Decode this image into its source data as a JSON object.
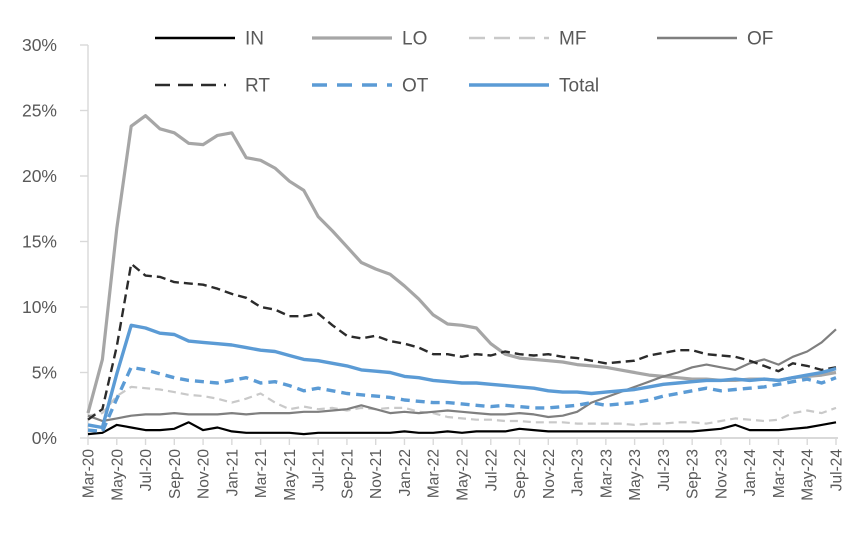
{
  "chart_data": {
    "type": "line",
    "title": "",
    "xlabel": "",
    "ylabel": "",
    "ylim": [
      0,
      30
    ],
    "grid": false,
    "legend_position": "top",
    "y_ticks": [
      {
        "value": 0,
        "label": "0%"
      },
      {
        "value": 5,
        "label": "5%"
      },
      {
        "value": 10,
        "label": "10%"
      },
      {
        "value": 15,
        "label": "15%"
      },
      {
        "value": 20,
        "label": "20%"
      },
      {
        "value": 25,
        "label": "25%"
      },
      {
        "value": 30,
        "label": "30%"
      }
    ],
    "x": [
      "Mar-20",
      "Apr-20",
      "May-20",
      "Jun-20",
      "Jul-20",
      "Aug-20",
      "Sep-20",
      "Oct-20",
      "Nov-20",
      "Dec-20",
      "Jan-21",
      "Feb-21",
      "Mar-21",
      "Apr-21",
      "May-21",
      "Jun-21",
      "Jul-21",
      "Aug-21",
      "Sep-21",
      "Oct-21",
      "Nov-21",
      "Dec-21",
      "Jan-22",
      "Feb-22",
      "Mar-22",
      "Apr-22",
      "May-22",
      "Jun-22",
      "Jul-22",
      "Aug-22",
      "Sep-22",
      "Oct-22",
      "Nov-22",
      "Dec-22",
      "Jan-23",
      "Feb-23",
      "Mar-23",
      "Apr-23",
      "May-23",
      "Jun-23",
      "Jul-23",
      "Aug-23",
      "Sep-23",
      "Oct-23",
      "Nov-23",
      "Dec-23",
      "Jan-24",
      "Feb-24",
      "Mar-24",
      "Apr-24",
      "May-24",
      "Jun-24",
      "Jul-24"
    ],
    "x_tick_labels": [
      "Mar-20",
      "May-20",
      "Jul-20",
      "Sep-20",
      "Nov-20",
      "Jan-21",
      "Mar-21",
      "May-21",
      "Jul-21",
      "Sep-21",
      "Nov-21",
      "Jan-22",
      "Mar-22",
      "May-22",
      "Jul-22",
      "Sep-22",
      "Nov-22",
      "Jan-23",
      "Mar-23",
      "May-23",
      "Jul-23",
      "Sep-23",
      "Nov-23",
      "Jan-24",
      "Mar-24",
      "May-24",
      "Jul-24"
    ],
    "x_tick_every": 2,
    "legend_rows": [
      [
        "IN",
        "LO",
        "MF",
        "OF"
      ],
      [
        "RT",
        "OT",
        "Total"
      ]
    ],
    "colors": {
      "axis": "#D9D9D9",
      "text": "#595959",
      "blue": "#5B9BD5"
    },
    "series": [
      {
        "name": "IN",
        "color": "#000000",
        "width": 2.2,
        "dash": null,
        "legend_dash": null,
        "values": [
          0.3,
          0.4,
          1.0,
          0.8,
          0.6,
          0.6,
          0.7,
          1.2,
          0.6,
          0.8,
          0.5,
          0.4,
          0.4,
          0.4,
          0.4,
          0.3,
          0.4,
          0.4,
          0.4,
          0.4,
          0.4,
          0.4,
          0.5,
          0.4,
          0.4,
          0.5,
          0.4,
          0.5,
          0.5,
          0.5,
          0.7,
          0.6,
          0.5,
          0.5,
          0.5,
          0.5,
          0.5,
          0.5,
          0.5,
          0.5,
          0.5,
          0.5,
          0.5,
          0.6,
          0.7,
          1.0,
          0.6,
          0.6,
          0.6,
          0.7,
          0.8,
          1.0,
          1.2
        ]
      },
      {
        "name": "LO",
        "color": "#A6A6A6",
        "width": 3.2,
        "dash": null,
        "legend_dash": null,
        "values": [
          1.9,
          6.0,
          16.0,
          23.8,
          24.6,
          23.6,
          23.3,
          22.5,
          22.4,
          23.1,
          23.3,
          21.4,
          21.2,
          20.6,
          19.6,
          18.9,
          16.9,
          15.8,
          14.6,
          13.4,
          12.9,
          12.5,
          11.6,
          10.6,
          9.4,
          8.7,
          8.6,
          8.4,
          7.2,
          6.4,
          6.1,
          6.0,
          5.9,
          5.8,
          5.6,
          5.5,
          5.4,
          5.2,
          5.0,
          4.8,
          4.7,
          4.6,
          4.5,
          4.5,
          4.4,
          4.4,
          4.5,
          4.5,
          4.4,
          4.6,
          4.7,
          4.8,
          5.0
        ]
      },
      {
        "name": "MF",
        "color": "#C9C9C9",
        "width": 2.2,
        "dash": "8 5",
        "legend_dash": "16 9",
        "values": [
          1.7,
          1.9,
          3.2,
          3.9,
          3.8,
          3.7,
          3.5,
          3.3,
          3.2,
          3.0,
          2.7,
          3.0,
          3.4,
          2.7,
          2.2,
          2.4,
          2.2,
          2.3,
          2.1,
          2.3,
          2.2,
          2.3,
          2.3,
          2.0,
          1.9,
          1.6,
          1.5,
          1.4,
          1.4,
          1.3,
          1.3,
          1.2,
          1.2,
          1.2,
          1.1,
          1.1,
          1.1,
          1.1,
          1.0,
          1.1,
          1.1,
          1.2,
          1.2,
          1.1,
          1.3,
          1.5,
          1.4,
          1.3,
          1.4,
          1.9,
          2.1,
          1.9,
          2.3
        ]
      },
      {
        "name": "OF",
        "color": "#7F7F7F",
        "width": 2.2,
        "dash": null,
        "legend_dash": null,
        "values": [
          1.7,
          1.3,
          1.5,
          1.7,
          1.8,
          1.8,
          1.9,
          1.8,
          1.8,
          1.8,
          1.9,
          1.8,
          1.9,
          1.9,
          1.9,
          2.0,
          2.0,
          2.1,
          2.2,
          2.5,
          2.2,
          1.9,
          2.0,
          1.9,
          2.0,
          2.1,
          2.0,
          1.9,
          1.8,
          1.8,
          1.9,
          1.8,
          1.6,
          1.7,
          2.0,
          2.7,
          3.1,
          3.5,
          3.9,
          4.3,
          4.7,
          5.0,
          5.4,
          5.6,
          5.4,
          5.2,
          5.7,
          6.0,
          5.6,
          6.2,
          6.6,
          7.3,
          8.3
        ]
      },
      {
        "name": "RT",
        "color": "#2B2B2B",
        "width": 2.4,
        "dash": "9 5",
        "legend_dash": "15 8 15 8 15 8 2 9",
        "values": [
          1.4,
          2.2,
          7.0,
          13.3,
          12.4,
          12.3,
          11.9,
          11.8,
          11.7,
          11.4,
          11.0,
          10.7,
          10.0,
          9.8,
          9.3,
          9.3,
          9.5,
          8.6,
          7.8,
          7.6,
          7.8,
          7.4,
          7.2,
          6.9,
          6.4,
          6.4,
          6.2,
          6.4,
          6.3,
          6.6,
          6.4,
          6.3,
          6.4,
          6.2,
          6.1,
          5.9,
          5.7,
          5.8,
          5.9,
          6.3,
          6.5,
          6.7,
          6.7,
          6.4,
          6.3,
          6.2,
          5.9,
          5.5,
          5.1,
          5.7,
          5.5,
          5.2,
          5.4
        ]
      },
      {
        "name": "OT",
        "color": "#5B9BD5",
        "width": 3.4,
        "dash": "9 6",
        "legend_dash": "15 10",
        "values": [
          0.6,
          0.5,
          3.0,
          5.4,
          5.2,
          4.9,
          4.6,
          4.4,
          4.3,
          4.2,
          4.4,
          4.6,
          4.2,
          4.3,
          4.0,
          3.6,
          3.8,
          3.6,
          3.4,
          3.3,
          3.2,
          3.1,
          2.9,
          2.8,
          2.7,
          2.7,
          2.6,
          2.5,
          2.4,
          2.5,
          2.4,
          2.3,
          2.3,
          2.4,
          2.5,
          2.7,
          2.5,
          2.6,
          2.7,
          2.9,
          3.2,
          3.4,
          3.6,
          3.8,
          3.6,
          3.7,
          3.8,
          3.9,
          4.1,
          4.3,
          4.5,
          4.2,
          4.6
        ]
      },
      {
        "name": "Total",
        "color": "#5B9BD5",
        "width": 3.4,
        "dash": null,
        "legend_dash": null,
        "values": [
          1.0,
          0.8,
          4.9,
          8.6,
          8.4,
          8.0,
          7.9,
          7.4,
          7.3,
          7.2,
          7.1,
          6.9,
          6.7,
          6.6,
          6.3,
          6.0,
          5.9,
          5.7,
          5.5,
          5.2,
          5.1,
          5.0,
          4.7,
          4.6,
          4.4,
          4.3,
          4.2,
          4.2,
          4.1,
          4.0,
          3.9,
          3.8,
          3.6,
          3.5,
          3.5,
          3.4,
          3.5,
          3.6,
          3.7,
          3.9,
          4.1,
          4.2,
          4.3,
          4.4,
          4.4,
          4.5,
          4.4,
          4.5,
          4.4,
          4.6,
          4.8,
          5.0,
          5.3
        ]
      }
    ]
  }
}
